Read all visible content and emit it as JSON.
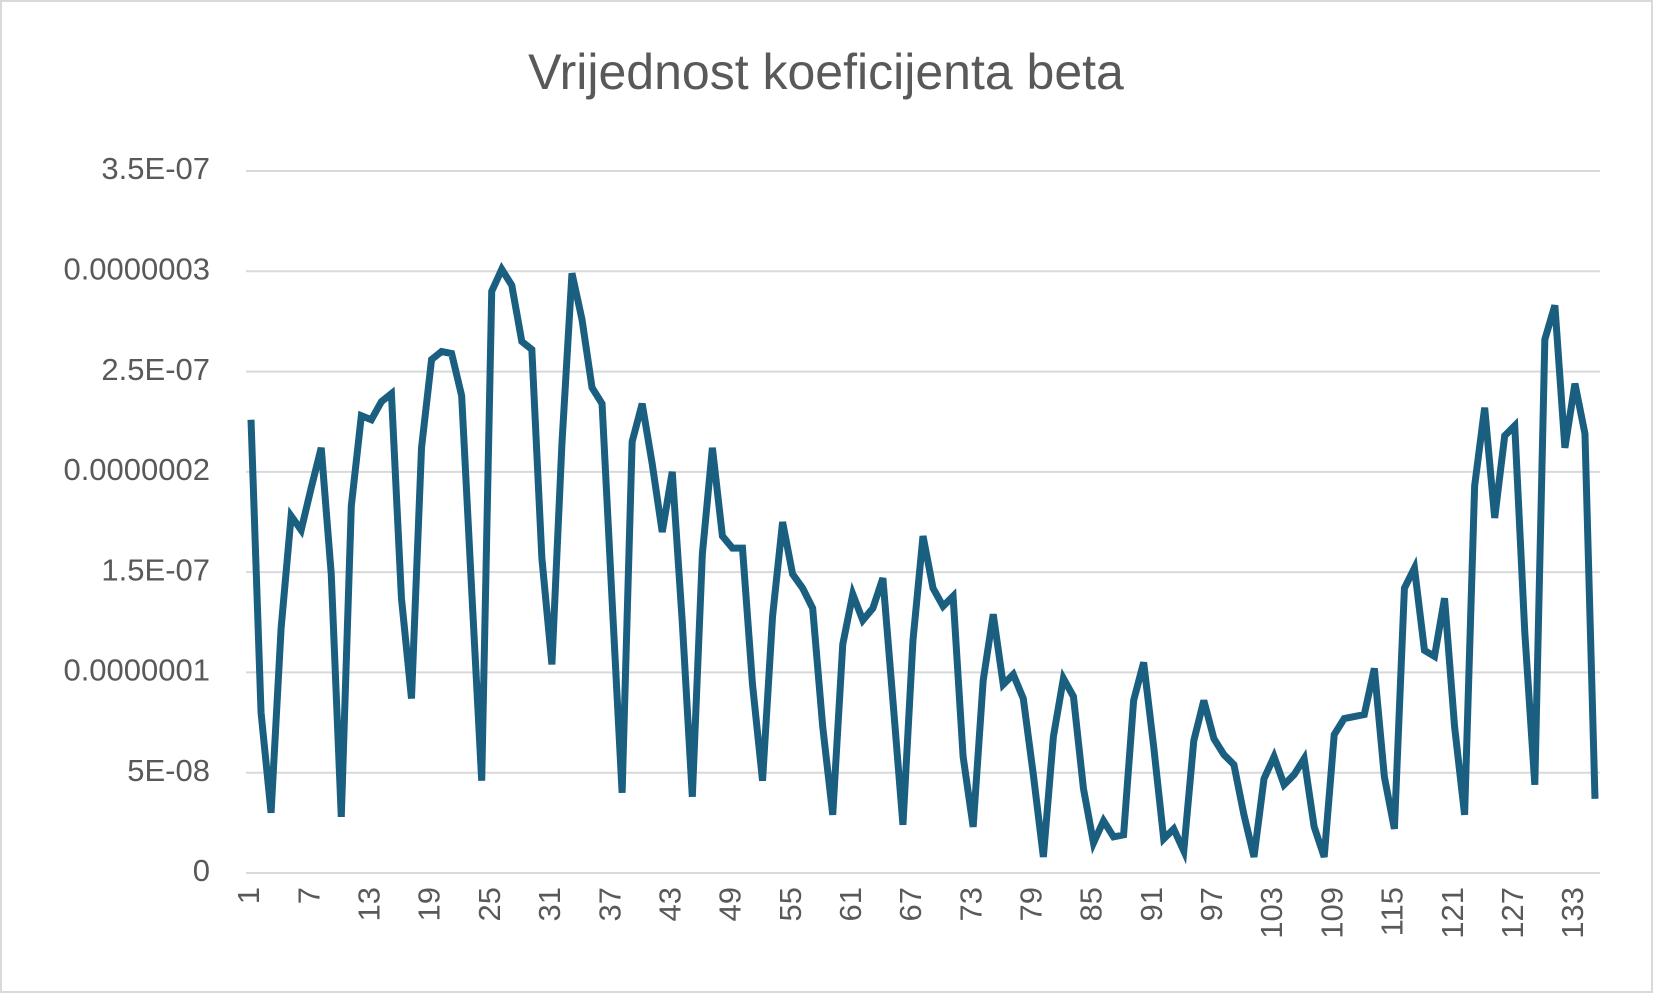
{
  "chart_data": {
    "type": "line",
    "title": "Vrijednost koeficijenta beta",
    "categories": [
      "1",
      null,
      null,
      null,
      null,
      null,
      "7",
      null,
      null,
      null,
      null,
      null,
      "13",
      null,
      null,
      null,
      null,
      null,
      "19",
      null,
      null,
      null,
      null,
      null,
      "25",
      null,
      null,
      null,
      null,
      null,
      "31",
      null,
      null,
      null,
      null,
      null,
      "37",
      null,
      null,
      null,
      null,
      null,
      "43",
      null,
      null,
      null,
      null,
      null,
      "49",
      null,
      null,
      null,
      null,
      null,
      "55",
      null,
      null,
      null,
      null,
      null,
      "61",
      null,
      null,
      null,
      null,
      null,
      "67",
      null,
      null,
      null,
      null,
      null,
      "73",
      null,
      null,
      null,
      null,
      null,
      "79",
      null,
      null,
      null,
      null,
      null,
      "85",
      null,
      null,
      null,
      null,
      null,
      "91",
      null,
      null,
      null,
      null,
      null,
      "97",
      null,
      null,
      null,
      null,
      null,
      "103",
      null,
      null,
      null,
      null,
      null,
      "109",
      null,
      null,
      null,
      null,
      null,
      "115",
      null,
      null,
      null,
      null,
      null,
      "121",
      null,
      null,
      null,
      null,
      null,
      "127",
      null,
      null,
      null,
      null,
      null,
      "133",
      null,
      null
    ],
    "series": [
      {
        "name": "beta",
        "color": "#1a5f80",
        "values": [
          2.26e-07,
          8e-08,
          3e-08,
          1.22e-07,
          1.78e-07,
          1.71e-07,
          1.92e-07,
          2.12e-07,
          1.49e-07,
          2.8e-08,
          1.83e-07,
          2.28e-07,
          2.26e-07,
          2.35e-07,
          2.39e-07,
          1.37e-07,
          8.7e-08,
          2.12e-07,
          2.56e-07,
          2.6e-07,
          2.59e-07,
          2.38e-07,
          1.41e-07,
          4.6e-08,
          2.9e-07,
          3.01e-07,
          2.93e-07,
          2.65e-07,
          2.61e-07,
          1.57e-07,
          1.04e-07,
          2.14e-07,
          2.99e-07,
          2.76e-07,
          2.42e-07,
          2.34e-07,
          1.36e-07,
          4e-08,
          2.15e-07,
          2.34e-07,
          2.04e-07,
          1.7e-07,
          2e-07,
          1.25e-07,
          3.8e-08,
          1.59e-07,
          2.12e-07,
          1.68e-07,
          1.62e-07,
          1.62e-07,
          9.4e-08,
          4.6e-08,
          1.28e-07,
          1.75e-07,
          1.49e-07,
          1.42e-07,
          1.32e-07,
          7.3e-08,
          2.9e-08,
          1.14e-07,
          1.39e-07,
          1.26e-07,
          1.32e-07,
          1.47e-07,
          8.6e-08,
          2.4e-08,
          1.16e-07,
          1.68e-07,
          1.42e-07,
          1.33e-07,
          1.38e-07,
          5.8e-08,
          2.3e-08,
          9.6e-08,
          1.29e-07,
          9.4e-08,
          9.9e-08,
          8.7e-08,
          4.9e-08,
          8e-09,
          6.8e-08,
          9.7e-08,
          8.8e-08,
          4.2e-08,
          1.5e-08,
          2.6e-08,
          1.8e-08,
          1.9e-08,
          8.6e-08,
          1.05e-07,
          6.3e-08,
          1.7e-08,
          2.2e-08,
          1.1e-08,
          6.6e-08,
          8.6e-08,
          6.7e-08,
          5.9e-08,
          5.4e-08,
          2.9e-08,
          8e-09,
          4.7e-08,
          5.8e-08,
          4.4e-08,
          4.9e-08,
          5.7e-08,
          2.3e-08,
          8e-09,
          6.9e-08,
          7.7e-08,
          7.8e-08,
          7.9e-08,
          1.02e-07,
          4.8e-08,
          2.2e-08,
          1.42e-07,
          1.52e-07,
          1.11e-07,
          1.08e-07,
          1.37e-07,
          7.3e-08,
          2.9e-08,
          1.93e-07,
          2.32e-07,
          1.77e-07,
          2.18e-07,
          2.23e-07,
          1.2e-07,
          4.4e-08,
          2.66e-07,
          2.83e-07,
          2.12e-07,
          2.44e-07,
          2.19e-07,
          3.7e-08
        ]
      }
    ],
    "ylim": [
      0,
      3.5e-07
    ],
    "yticks": [
      0,
      {
        "value": 5e-08,
        "label": "5E-08"
      },
      {
        "value": 1e-07,
        "label": "0.0000001"
      },
      {
        "value": 1.5e-07,
        "label": "1.5E-07"
      },
      {
        "value": 2e-07,
        "label": "0.0000002"
      },
      {
        "value": 2.5e-07,
        "label": "2.5E-07"
      },
      {
        "value": 3e-07,
        "label": "0.0000003"
      },
      {
        "value": 3.5e-07,
        "label": "3.5E-07"
      }
    ],
    "grid": true
  }
}
